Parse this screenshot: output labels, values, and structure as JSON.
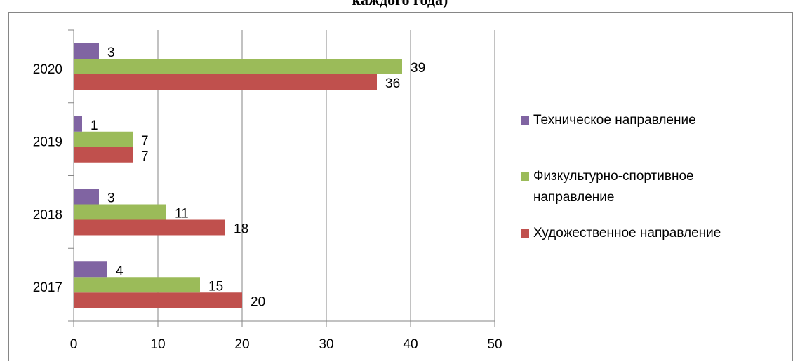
{
  "chart_data": {
    "type": "bar",
    "orientation": "horizontal",
    "title": "каждого года)",
    "categories": [
      "2017",
      "2018",
      "2019",
      "2020"
    ],
    "series": [
      {
        "name": "Художественное направление",
        "color": "#c0504d",
        "values": [
          20,
          18,
          7,
          36
        ]
      },
      {
        "name": "Физкультурно-спортивное направление",
        "color": "#9bbb59",
        "values": [
          15,
          11,
          7,
          39
        ]
      },
      {
        "name": "Техническое направление",
        "color": "#8064a2",
        "values": [
          4,
          3,
          1,
          3
        ]
      }
    ],
    "xlim": [
      0,
      50
    ],
    "xticks": [
      0,
      10,
      20,
      30,
      40,
      50
    ],
    "grid": true,
    "legend": "right"
  }
}
